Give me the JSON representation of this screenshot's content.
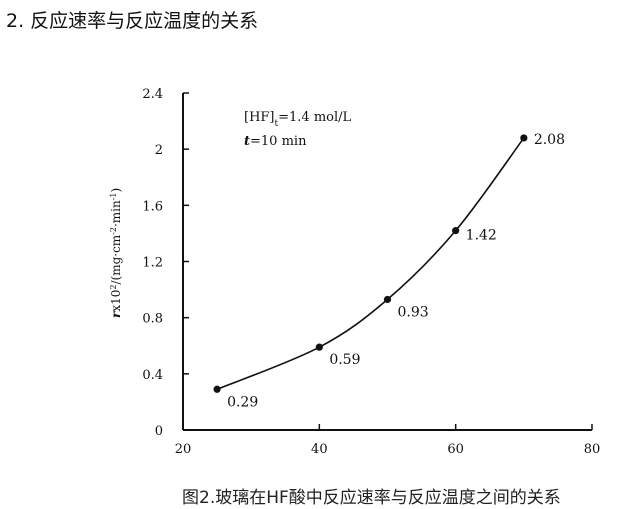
{
  "page": {
    "heading": "2. 反应速率与反应温度的关系",
    "caption": "图2.玻璃在HF酸中反应速率与反应温度之间的关系"
  },
  "chart_data": {
    "type": "line",
    "title": "",
    "xlabel": "",
    "ylabel_parts": [
      "r",
      "x10",
      "2",
      "/(mg·cm",
      "-2",
      "·min",
      "-1",
      ")"
    ],
    "xlim": [
      20,
      80
    ],
    "ylim": [
      0,
      2.4
    ],
    "x_ticks": [
      "20",
      "40",
      "60",
      "80"
    ],
    "y_ticks": [
      "0",
      "0.4",
      "0.8",
      "1.2",
      "1.6",
      "2",
      "2.4"
    ],
    "x_tick_values": [
      20,
      40,
      60,
      80
    ],
    "y_tick_values": [
      0,
      0.4,
      0.8,
      1.2,
      1.6,
      2,
      2.4
    ],
    "points": [
      {
        "x": 25,
        "y": 0.29,
        "label": "0.29"
      },
      {
        "x": 40,
        "y": 0.59,
        "label": "0.59"
      },
      {
        "x": 50,
        "y": 0.93,
        "label": "0.93"
      },
      {
        "x": 60,
        "y": 1.42,
        "label": "1.42"
      },
      {
        "x": 70,
        "y": 2.08,
        "label": "2.08"
      }
    ],
    "annotations": [
      {
        "parts": [
          "[HF]",
          "t",
          "=1.4 mol/L"
        ]
      },
      {
        "parts": [
          "t",
          "=10 min"
        ]
      }
    ],
    "grid": false,
    "colors": {
      "line": "#111111",
      "marker": "#111111"
    }
  }
}
